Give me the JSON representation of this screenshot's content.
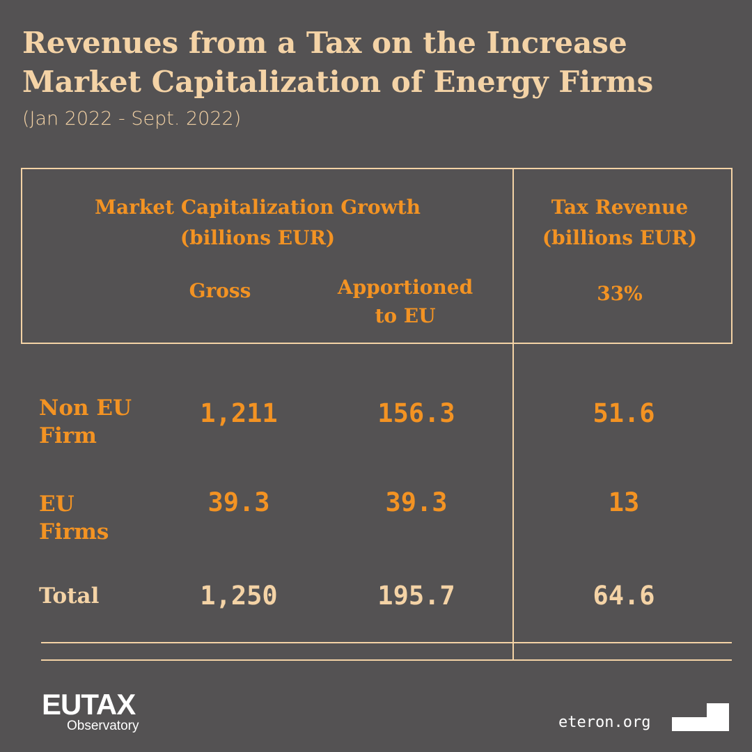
{
  "title_line1": "Revenues from a Tax on the Increase",
  "title_line2": "Market Capitalization of Energy Firms",
  "subtitle": "(Jan 2022 - Sept. 2022)",
  "header": {
    "group1_line1": "Market Capitalization Growth",
    "group1_line2": "(billions EUR)",
    "gross": "Gross",
    "apportioned_line1": "Apportioned",
    "apportioned_line2": "to EU",
    "group2_line1": "Tax Revenue",
    "group2_line2": "(billions EUR)",
    "rate": "33%"
  },
  "rows": [
    {
      "label_line1": "Non EU",
      "label_line2": "Firm",
      "gross": "1,211",
      "apportioned": "156.3",
      "tax": "51.6"
    },
    {
      "label_line1": "EU",
      "label_line2": "Firms",
      "gross": "39.3",
      "apportioned": "39.3",
      "tax": "13"
    },
    {
      "label_line1": "Total",
      "label_line2": "",
      "gross": "1,250",
      "apportioned": "195.7",
      "tax": "64.6"
    }
  ],
  "footer": {
    "logo": "EUTAX",
    "logo_sub": "Observatory",
    "url": "eteron.org"
  }
}
